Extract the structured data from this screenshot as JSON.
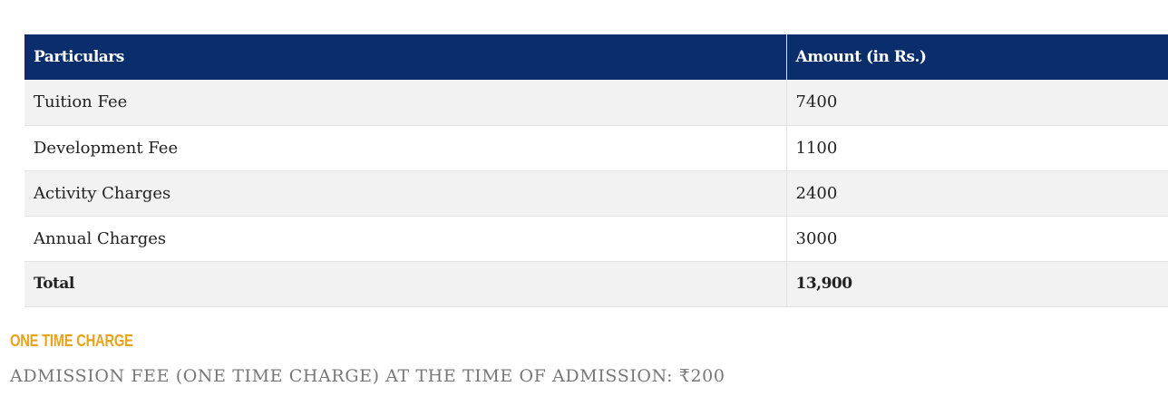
{
  "table": {
    "header": [
      "Particulars",
      "Amount (in Rs.)"
    ],
    "rows": [
      [
        "Tuition Fee",
        "7400"
      ],
      [
        "Development Fee",
        "1100"
      ],
      [
        "Activity Charges",
        "2400"
      ],
      [
        "Annual Charges",
        "3000"
      ]
    ],
    "total": [
      "Total",
      "13,900"
    ]
  },
  "section": {
    "heading": "ONE TIME CHARGE",
    "note": "ADMISSION FEE (ONE TIME CHARGE) AT THE TIME OF ADMISSION: ₹200"
  }
}
